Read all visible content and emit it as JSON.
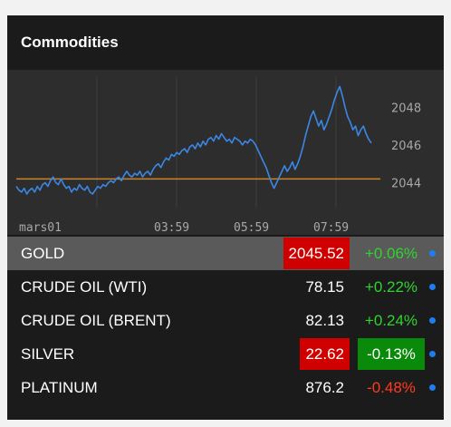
{
  "header": {
    "title": "Commodities"
  },
  "chart_data": {
    "type": "line",
    "x_ticks": [
      "mars01",
      "03:59",
      "05:59",
      "07:59"
    ],
    "y_ticks": [
      2044,
      2046,
      2048
    ],
    "ylim": [
      2042.1,
      2049.6
    ],
    "reference_line": 2044.2,
    "series": [
      {
        "color": "#3b87e6",
        "values": [
          2043.8,
          2043.6,
          2043.5,
          2043.7,
          2043.4,
          2043.6,
          2043.7,
          2043.5,
          2043.8,
          2043.6,
          2043.9,
          2044.0,
          2043.8,
          2044.1,
          2044.3,
          2044.0,
          2043.9,
          2044.2,
          2043.9,
          2043.7,
          2043.8,
          2043.5,
          2043.7,
          2043.6,
          2043.9,
          2043.7,
          2043.6,
          2043.8,
          2043.5,
          2043.4,
          2043.6,
          2043.8,
          2043.7,
          2043.9,
          2043.8,
          2044.0,
          2044.1,
          2044.0,
          2044.2,
          2044.3,
          2044.1,
          2044.4,
          2044.6,
          2044.4,
          2044.3,
          2044.5,
          2044.4,
          2044.6,
          2044.3,
          2044.5,
          2044.6,
          2044.4,
          2044.7,
          2044.9,
          2045.0,
          2044.8,
          2045.1,
          2045.3,
          2045.2,
          2045.5,
          2045.4,
          2045.6,
          2045.5,
          2045.7,
          2045.8,
          2045.6,
          2045.9,
          2046.0,
          2045.8,
          2046.1,
          2045.9,
          2046.2,
          2046.0,
          2046.3,
          2046.4,
          2046.2,
          2046.5,
          2046.3,
          2046.6,
          2046.4,
          2046.2,
          2046.3,
          2046.1,
          2046.4,
          2046.3,
          2046.2,
          2046.0,
          2046.2,
          2046.1,
          2046.3,
          2046.2,
          2046.0,
          2045.7,
          2045.4,
          2045.1,
          2044.8,
          2044.4,
          2044.0,
          2043.7,
          2044.0,
          2044.3,
          2044.6,
          2044.9,
          2044.6,
          2044.8,
          2045.1,
          2044.7,
          2045.0,
          2045.4,
          2045.9,
          2046.5,
          2047.0,
          2047.5,
          2047.8,
          2047.4,
          2047.0,
          2047.3,
          2046.8,
          2047.1,
          2047.5,
          2047.9,
          2048.4,
          2048.8,
          2049.1,
          2048.6,
          2048.0,
          2047.5,
          2047.2,
          2046.8,
          2047.0,
          2046.5,
          2046.8,
          2047.0,
          2046.6,
          2046.3,
          2046.1
        ]
      }
    ]
  },
  "rows": [
    {
      "name": "GOLD",
      "price": "2045.52",
      "change": "+0.06%",
      "dir": "up",
      "price_flash": true,
      "change_flash": false,
      "selected": true
    },
    {
      "name": "CRUDE OIL (WTI)",
      "price": "78.15",
      "change": "+0.22%",
      "dir": "up",
      "price_flash": false,
      "change_flash": false,
      "selected": false
    },
    {
      "name": "CRUDE OIL (BRENT)",
      "price": "82.13",
      "change": "+0.24%",
      "dir": "up",
      "price_flash": false,
      "change_flash": false,
      "selected": false
    },
    {
      "name": "SILVER",
      "price": "22.62",
      "change": "-0.13%",
      "dir": "down",
      "price_flash": true,
      "change_flash": true,
      "selected": false
    },
    {
      "name": "PLATINUM",
      "price": "876.2",
      "change": "-0.48%",
      "dir": "down",
      "price_flash": false,
      "change_flash": false,
      "selected": false
    }
  ],
  "colors": {
    "accent": "#1e7df0",
    "positive": "#2fd42f",
    "negative": "#ff3b1f",
    "flash_red": "#d00000",
    "flash_green": "#0a8a0a",
    "reference_line": "#c9832a"
  }
}
